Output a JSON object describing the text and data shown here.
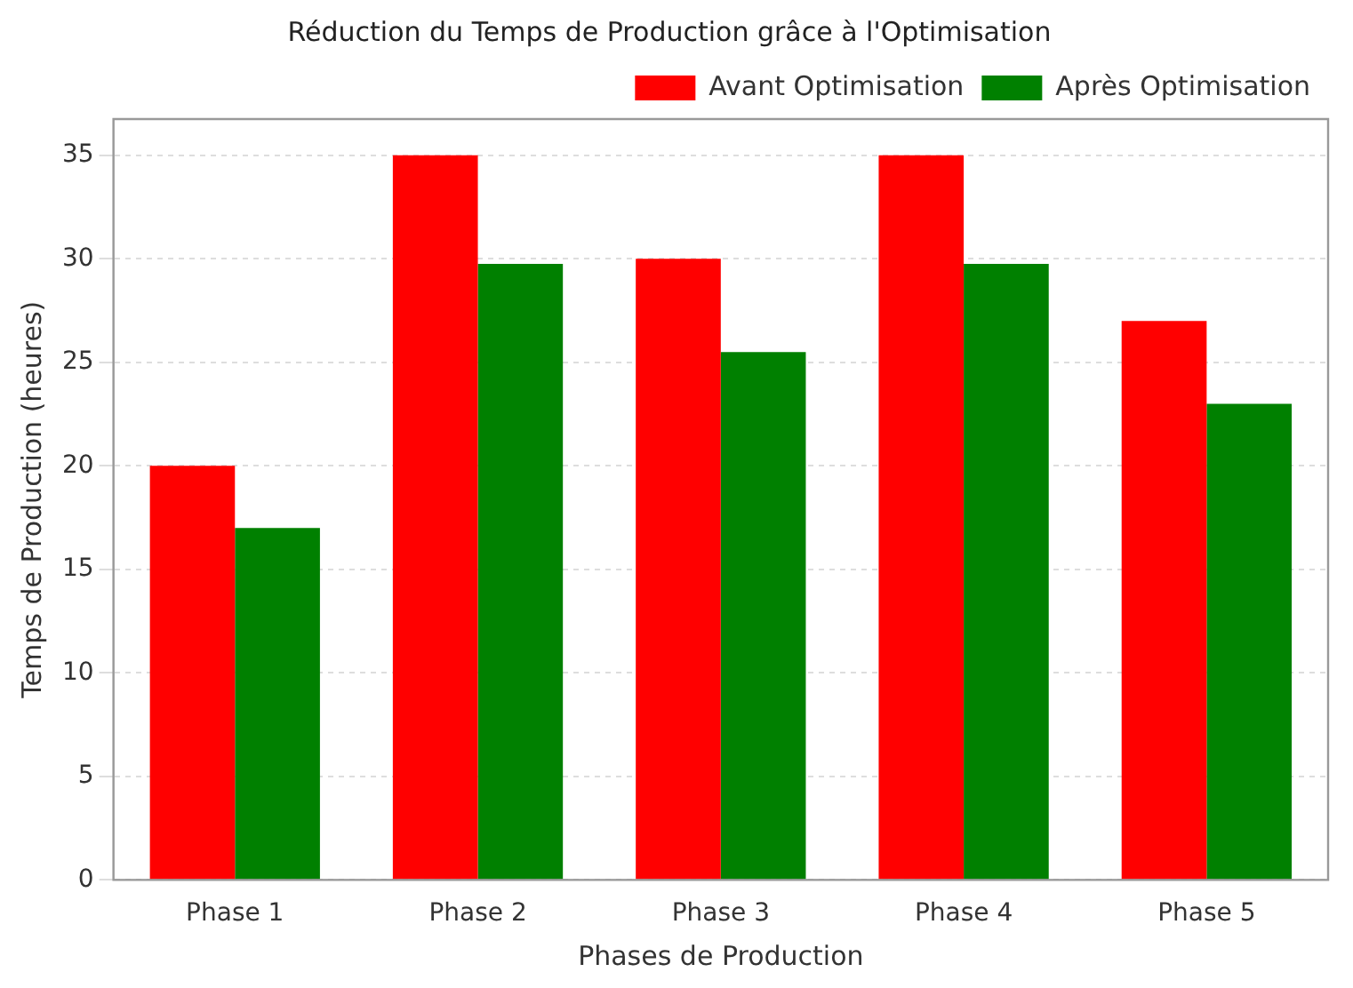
{
  "chart_data": {
    "type": "bar",
    "title": "Réduction du Temps de Production grâce à l'Optimisation",
    "xlabel": "Phases de Production",
    "ylabel": "Temps de Production (heures)",
    "categories": [
      "Phase 1",
      "Phase 2",
      "Phase 3",
      "Phase 4",
      "Phase 5"
    ],
    "series": [
      {
        "name": "Avant Optimisation",
        "color": "#ff0000",
        "values": [
          20,
          35,
          30,
          35,
          27
        ]
      },
      {
        "name": "Après Optimisation",
        "color": "#008000",
        "values": [
          17,
          29.75,
          25.5,
          29.75,
          23
        ]
      }
    ],
    "ylim": [
      0,
      36.75
    ],
    "yticks": [
      0,
      5,
      10,
      15,
      20,
      25,
      30,
      35
    ],
    "grid": "y",
    "legend": "top right"
  }
}
